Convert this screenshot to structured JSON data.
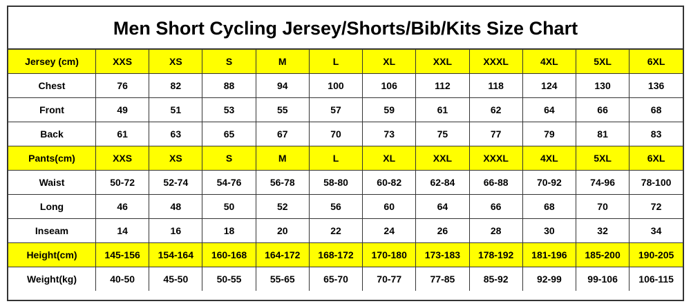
{
  "title": "Men Short Cycling Jersey/Shorts/Bib/Kits Size Chart",
  "table": {
    "rows": [
      {
        "label": "Jersey (cm)",
        "fill": "#ffff00",
        "cells": [
          "XXS",
          "XS",
          "S",
          "M",
          "L",
          "XL",
          "XXL",
          "XXXL",
          "4XL",
          "5XL",
          "6XL"
        ]
      },
      {
        "label": "Chest",
        "fill": "#ffffff",
        "cells": [
          76,
          82,
          88,
          94,
          100,
          106,
          112,
          118,
          124,
          130,
          136
        ]
      },
      {
        "label": "Front",
        "fill": "#ffffff",
        "cells": [
          49,
          51,
          53,
          55,
          57,
          59,
          61,
          62,
          64,
          66,
          68
        ]
      },
      {
        "label": "Back",
        "fill": "#ffffff",
        "cells": [
          61,
          63,
          65,
          67,
          70,
          73,
          75,
          77,
          79,
          81,
          83
        ]
      },
      {
        "label": "Pants(cm)",
        "fill": "#ffff00",
        "cells": [
          "XXS",
          "XS",
          "S",
          "M",
          "L",
          "XL",
          "XXL",
          "XXXL",
          "4XL",
          "5XL",
          "6XL"
        ]
      },
      {
        "label": "Waist",
        "fill": "#ffffff",
        "cells": [
          "50-72",
          "52-74",
          "54-76",
          "56-78",
          "58-80",
          "60-82",
          "62-84",
          "66-88",
          "70-92",
          "74-96",
          "78-100"
        ]
      },
      {
        "label": "Long",
        "fill": "#ffffff",
        "cells": [
          46,
          48,
          50,
          52,
          56,
          60,
          64,
          66,
          68,
          70,
          72
        ]
      },
      {
        "label": "Inseam",
        "fill": "#ffffff",
        "cells": [
          14,
          16,
          18,
          20,
          22,
          24,
          26,
          28,
          30,
          32,
          34
        ]
      },
      {
        "label": "Height(cm)",
        "fill": "#ffff00",
        "cells": [
          "145-156",
          "154-164",
          "160-168",
          "164-172",
          "168-172",
          "170-180",
          "173-183",
          "178-192",
          "181-196",
          "185-200",
          "190-205"
        ]
      },
      {
        "label": "Weight(kg)",
        "fill": "#ffffff",
        "cells": [
          "40-50",
          "45-50",
          "50-55",
          "55-65",
          "65-70",
          "70-77",
          "77-85",
          "85-92",
          "92-99",
          "99-106",
          "106-115"
        ]
      }
    ]
  }
}
